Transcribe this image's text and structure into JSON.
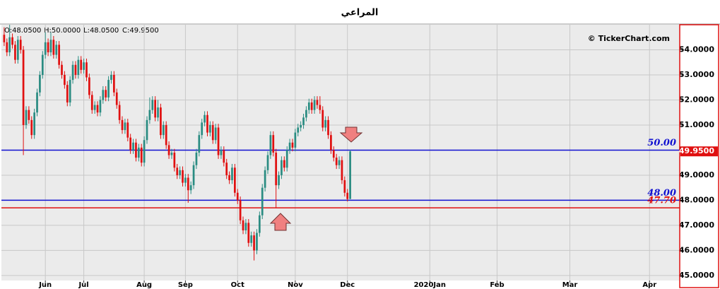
{
  "chart_data": {
    "type": "candlestick",
    "title": "المراعي",
    "header": [
      "O:48.0500",
      "H:50.0000",
      "L:48.0500",
      "C:49.9500"
    ],
    "watermark": "© TickerChart.com",
    "up_color": "#2a8c82",
    "down_color": "#e01010",
    "xlim": [
      -1,
      246
    ],
    "xticks": [
      {
        "value": 15,
        "label": "Jun"
      },
      {
        "value": 29,
        "label": "Jul"
      },
      {
        "value": 51,
        "label": "Aug"
      },
      {
        "value": 66,
        "label": "Sep"
      },
      {
        "value": 85,
        "label": "Oct"
      },
      {
        "value": 106,
        "label": "Nov"
      },
      {
        "value": 125,
        "label": "Dec"
      },
      {
        "value": 155,
        "label": "2020Jan"
      },
      {
        "value": 179.5,
        "label": "Feb"
      },
      {
        "value": 206,
        "label": "Mar"
      },
      {
        "value": 235,
        "label": "Apr"
      }
    ],
    "ylim": [
      44.8,
      55.0
    ],
    "yticks": [
      {
        "value": 45,
        "label": "45.0000"
      },
      {
        "value": 46,
        "label": "46.0000"
      },
      {
        "value": 47,
        "label": "47.0000"
      },
      {
        "value": 48,
        "label": "48.0000"
      },
      {
        "value": 49,
        "label": "49.0000"
      },
      {
        "value": 50,
        "label": "50.0000"
      },
      {
        "value": 51,
        "label": "51.0000"
      },
      {
        "value": 52,
        "label": "52.0000"
      },
      {
        "value": 53,
        "label": "53.0000"
      },
      {
        "value": 54,
        "label": "54.0000"
      }
    ],
    "grid": true,
    "levels": [
      {
        "value": 50,
        "label": "50.00",
        "color": "#1010d0"
      },
      {
        "value": 48,
        "label": "48.00",
        "color": "#1010d0"
      },
      {
        "value": 47.7,
        "label": "47.70",
        "color": "#e01010"
      }
    ],
    "last_price": {
      "value": 49.95,
      "label": "49.9500"
    },
    "open": [
      54.6,
      54.3,
      53.9,
      54.5,
      54.2,
      53.6,
      54.4,
      54.0,
      51.0,
      51.6,
      51.2,
      50.6,
      51.5,
      52.3,
      53.0,
      53.8,
      54.3,
      53.9,
      54.4,
      53.8,
      54.2,
      53.4,
      53.0,
      52.6,
      51.9,
      52.8,
      53.4,
      53.0,
      53.6,
      53.2,
      53.5,
      52.9,
      52.2,
      51.6,
      51.8,
      51.5,
      52.0,
      52.4,
      52.1,
      52.8,
      53.0,
      52.3,
      51.8,
      51.2,
      50.8,
      51.1,
      50.5,
      50.0,
      50.3,
      49.7,
      50.1,
      49.5,
      50.4,
      51.2,
      51.6,
      52.0,
      51.3,
      51.7,
      50.6,
      51.0,
      50.2,
      49.8,
      49.9,
      49.3,
      49.0,
      49.2,
      48.7,
      48.9,
      48.4,
      48.6,
      49.4,
      49.9,
      50.6,
      51.1,
      51.4,
      50.7,
      51.0,
      50.4,
      50.9,
      49.8,
      50.0,
      49.5,
      49.0,
      48.8,
      49.3,
      48.3,
      48.0,
      47.2,
      46.8,
      47.1,
      46.3,
      46.6,
      46.0,
      46.7,
      47.4,
      48.5,
      49.2,
      49.8,
      50.6,
      49.9,
      48.6,
      49.0,
      49.6,
      49.3,
      50.0,
      50.3,
      50.1,
      50.7,
      50.9,
      51.0,
      51.3,
      51.6,
      51.9,
      51.6,
      52.0,
      51.8,
      51.6,
      50.9,
      51.2,
      50.6,
      50.0,
      49.7,
      49.4,
      49.6,
      48.8,
      48.3,
      48.05
    ],
    "high": [
      54.9,
      54.45,
      55.0,
      54.65,
      54.35,
      54.55,
      54.55,
      54.15,
      51.75,
      51.75,
      51.35,
      51.65,
      52.45,
      53.15,
      53.95,
      54.7,
      54.45,
      54.7,
      54.55,
      54.35,
      54.35,
      53.55,
      53.15,
      52.75,
      52.95,
      53.55,
      53.55,
      53.75,
      53.75,
      53.65,
      53.65,
      53.05,
      52.35,
      51.95,
      51.95,
      52.15,
      52.55,
      52.55,
      52.95,
      53.15,
      53.15,
      52.45,
      51.95,
      51.35,
      51.25,
      51.25,
      50.65,
      50.45,
      50.45,
      50.25,
      50.25,
      50.55,
      51.35,
      52.1,
      52.15,
      52.15,
      52.0,
      51.85,
      51.15,
      51.15,
      50.35,
      50.05,
      50.05,
      49.45,
      49.35,
      49.35,
      49.05,
      49.05,
      48.75,
      49.55,
      50.05,
      50.75,
      51.25,
      51.55,
      51.55,
      51.15,
      51.15,
      51.05,
      51.05,
      50.15,
      50.15,
      49.65,
      49.15,
      49.45,
      49.45,
      48.45,
      48.15,
      47.35,
      47.25,
      47.25,
      46.75,
      46.75,
      46.85,
      47.55,
      48.65,
      49.35,
      49.95,
      50.75,
      50.75,
      50.05,
      49.15,
      49.75,
      49.75,
      50.15,
      50.45,
      50.45,
      50.85,
      51.05,
      51.15,
      51.45,
      51.75,
      52.05,
      52.05,
      52.15,
      52.15,
      52.15,
      51.75,
      51.35,
      51.35,
      50.75,
      50.15,
      49.85,
      49.75,
      49.75,
      48.95,
      48.45,
      50.0
    ],
    "low": [
      54.15,
      53.75,
      53.75,
      54.05,
      53.45,
      53.45,
      53.85,
      49.8,
      50.85,
      51.05,
      50.45,
      50.45,
      51.35,
      52.15,
      52.85,
      53.65,
      53.75,
      53.75,
      53.65,
      53.65,
      53.25,
      52.85,
      52.45,
      51.75,
      51.75,
      52.65,
      52.85,
      52.85,
      53.05,
      53.05,
      52.75,
      52.05,
      51.45,
      51.45,
      51.35,
      51.35,
      51.85,
      51.95,
      51.95,
      52.65,
      52.15,
      51.65,
      51.05,
      50.65,
      50.65,
      50.35,
      49.85,
      49.85,
      49.55,
      49.55,
      49.35,
      49.35,
      50.25,
      51.05,
      51.45,
      51.15,
      51.15,
      50.45,
      50.45,
      50.05,
      49.65,
      49.65,
      49.15,
      48.85,
      48.85,
      48.55,
      48.55,
      47.9,
      48.25,
      48.45,
      49.25,
      49.75,
      50.45,
      50.95,
      50.55,
      50.55,
      50.25,
      50.25,
      49.65,
      49.65,
      49.35,
      48.85,
      48.65,
      48.65,
      48.15,
      47.85,
      47.05,
      46.65,
      46.65,
      46.15,
      46.15,
      45.6,
      45.85,
      46.55,
      47.25,
      48.35,
      49.05,
      49.65,
      49.75,
      47.7,
      48.45,
      48.85,
      49.15,
      49.15,
      49.85,
      49.95,
      49.95,
      50.55,
      50.75,
      50.85,
      51.15,
      51.45,
      51.45,
      51.45,
      51.65,
      51.45,
      50.75,
      50.75,
      50.45,
      49.85,
      49.55,
      49.25,
      49.25,
      48.65,
      48.15,
      47.95,
      48.05
    ],
    "close": [
      54.3,
      53.9,
      54.5,
      54.2,
      53.6,
      54.4,
      54.0,
      51.0,
      51.6,
      51.2,
      50.6,
      51.5,
      52.3,
      53.0,
      53.8,
      54.3,
      53.9,
      54.4,
      53.8,
      54.2,
      53.4,
      53.0,
      52.6,
      51.9,
      52.8,
      53.4,
      53.0,
      53.6,
      53.2,
      53.5,
      52.9,
      52.2,
      51.6,
      51.8,
      51.5,
      52.0,
      52.4,
      52.1,
      52.8,
      53.0,
      52.3,
      51.8,
      51.2,
      50.8,
      51.1,
      50.5,
      50.0,
      50.3,
      49.7,
      50.1,
      49.5,
      50.4,
      51.2,
      51.6,
      52.0,
      51.3,
      51.7,
      50.6,
      51.0,
      50.2,
      49.8,
      49.9,
      49.3,
      49.0,
      49.2,
      48.7,
      48.9,
      48.4,
      48.6,
      49.4,
      49.9,
      50.6,
      51.1,
      51.4,
      50.7,
      51.0,
      50.4,
      50.9,
      49.8,
      50.0,
      49.5,
      49.0,
      48.8,
      49.3,
      48.3,
      48.0,
      47.2,
      46.8,
      47.1,
      46.3,
      46.6,
      46.0,
      46.7,
      47.4,
      48.5,
      49.2,
      49.8,
      50.6,
      49.9,
      48.6,
      49.0,
      49.6,
      49.3,
      50.0,
      50.3,
      50.1,
      50.7,
      50.9,
      51.0,
      51.3,
      51.6,
      51.9,
      51.6,
      52.0,
      51.8,
      51.6,
      50.9,
      51.2,
      50.6,
      50.0,
      49.7,
      49.4,
      49.6,
      48.8,
      48.3,
      48.05,
      49.95
    ]
  }
}
